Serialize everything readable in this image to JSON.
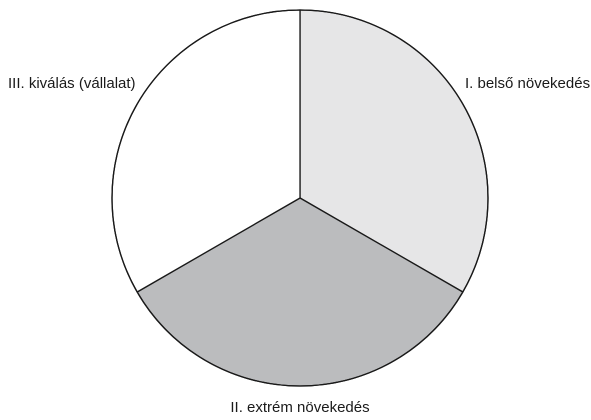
{
  "chart_data": {
    "type": "pie",
    "title": "",
    "slices": [
      {
        "label": "I. belső növekedés",
        "value": 33.33,
        "color": "#e6e6e7"
      },
      {
        "label": "II. extrém növekedés",
        "value": 33.33,
        "color": "#bbbcbe"
      },
      {
        "label": "III. kiválás (vállalat)",
        "value": 33.33,
        "color": "#ffffff"
      }
    ],
    "start_angle_deg": 0,
    "direction": "clockwise",
    "legend": "none",
    "edge_color": "#1a1a1a"
  }
}
